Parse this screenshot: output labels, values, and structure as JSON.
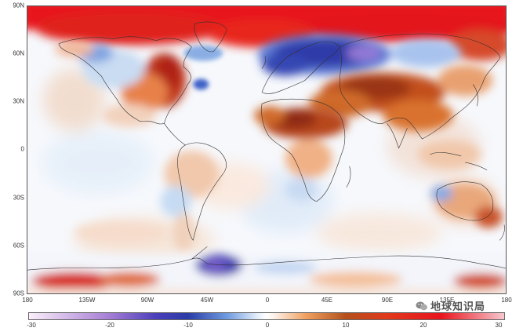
{
  "map": {
    "lat_labels": [
      "90N",
      "60N",
      "30N",
      "0",
      "30S",
      "60S",
      "90S"
    ],
    "lon_labels": [
      "180",
      "135W",
      "90W",
      "45W",
      "0",
      "45E",
      "90E",
      "135E",
      "180"
    ],
    "colorbar": {
      "ticks": [
        "-30",
        "-20",
        "-10",
        "0",
        "10",
        "20",
        "30"
      ],
      "min": -30,
      "max": 30,
      "stops": [
        {
          "value": -30,
          "color": "#fbeef9"
        },
        {
          "value": -20,
          "color": "#a77fd6"
        },
        {
          "value": -14,
          "color": "#4b3fbb"
        },
        {
          "value": -10,
          "color": "#2b3ba6"
        },
        {
          "value": -5,
          "color": "#6f9be0"
        },
        {
          "value": -1,
          "color": "#e9f1fb"
        },
        {
          "value": 0,
          "color": "#ffffff"
        },
        {
          "value": 1,
          "color": "#fdf0e6"
        },
        {
          "value": 5,
          "color": "#f0a060"
        },
        {
          "value": 10,
          "color": "#b3501c"
        },
        {
          "value": 15,
          "color": "#e03a1b"
        },
        {
          "value": 22,
          "color": "#e8141e"
        },
        {
          "value": 30,
          "color": "#f7c8cf"
        }
      ]
    },
    "colors": {
      "warm_strong": "#d9221b",
      "warm_mid": "#e2722e",
      "warm_light": "#f5c39a",
      "cool_light": "#c7dcf3",
      "cool_mid": "#5a7fd6",
      "cool_strong": "#2d2ea3",
      "cool_purple": "#8f6cd2",
      "coast": "#333333"
    },
    "watermark": "地球知识局",
    "watermark_icon": "wechat-icon"
  }
}
